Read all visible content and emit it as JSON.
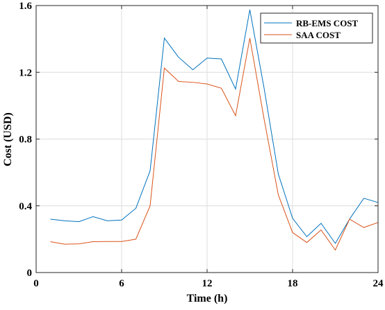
{
  "chart_data": {
    "type": "line",
    "xlabel": "Time (h)",
    "ylabel": "Cost (USD)",
    "xlim": [
      0,
      24
    ],
    "ylim": [
      0,
      1.6
    ],
    "x_ticks": [
      0,
      6,
      12,
      18,
      24
    ],
    "y_ticks": [
      0,
      0.4,
      0.8,
      1.2,
      1.6
    ],
    "x_tick_labels": [
      "0",
      "6",
      "12",
      "18",
      "24"
    ],
    "y_tick_labels": [
      "0",
      "0.4",
      "0.8",
      "1.2",
      "1.6"
    ],
    "grid": true,
    "legend_position": "top-right",
    "x": [
      1,
      2,
      3,
      4,
      5,
      6,
      7,
      8,
      9,
      10,
      11,
      12,
      13,
      14,
      15,
      16,
      17,
      18,
      19,
      20,
      21,
      22,
      23,
      24
    ],
    "series": [
      {
        "name": "RB-EMS COST",
        "color": "#0072BD",
        "values": [
          0.32,
          0.31,
          0.305,
          0.335,
          0.31,
          0.315,
          0.385,
          0.61,
          1.405,
          1.29,
          1.215,
          1.285,
          1.28,
          1.1,
          1.575,
          1.105,
          0.59,
          0.325,
          0.215,
          0.295,
          0.175,
          0.32,
          0.445,
          0.42
        ]
      },
      {
        "name": "SAA COST",
        "color": "#D95319",
        "values": [
          0.185,
          0.17,
          0.172,
          0.185,
          0.186,
          0.186,
          0.2,
          0.4,
          1.225,
          1.145,
          1.14,
          1.13,
          1.105,
          0.94,
          1.405,
          0.92,
          0.465,
          0.24,
          0.18,
          0.255,
          0.135,
          0.32,
          0.27,
          0.3
        ]
      }
    ]
  }
}
